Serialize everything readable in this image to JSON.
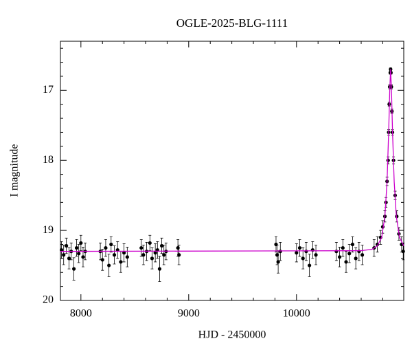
{
  "chart_data": {
    "type": "scatter",
    "title": "OGLE-2025-BLG-1111",
    "x_label": "HJD - 2450000",
    "y_label": "I magnitude",
    "xlim": [
      7810,
      10995
    ],
    "ylim": [
      20,
      16.3
    ],
    "xticks": [
      8000,
      9000,
      10000
    ],
    "yticks": [
      17,
      18,
      19,
      20
    ],
    "minor_xticks": [
      8200,
      8400,
      8600,
      8800,
      9200,
      9400,
      9600,
      9800,
      10200,
      10400,
      10600,
      10800
    ],
    "minor_yticks": [
      16.4,
      16.6,
      16.8,
      17.2,
      17.4,
      17.6,
      17.8,
      18.2,
      18.4,
      18.6,
      18.8,
      19.2,
      19.4,
      19.6,
      19.8
    ],
    "series": [
      {
        "mode": "markers",
        "color": "#000000",
        "x": [
          7820,
          7840,
          7865,
          7890,
          7910,
          7935,
          7960,
          7980,
          8000,
          8020,
          8040,
          8180,
          8200,
          8230,
          8260,
          8280,
          8310,
          8340,
          8370,
          8400,
          8430,
          8560,
          8580,
          8610,
          8640,
          8660,
          8690,
          8710,
          8730,
          8750,
          8770,
          8790,
          8900,
          8910,
          9810,
          9820,
          9830,
          9850,
          10000,
          10030,
          10060,
          10090,
          10120,
          10150,
          10180,
          10370,
          10400,
          10430,
          10460,
          10490,
          10520,
          10550,
          10580,
          10610,
          10720,
          10750,
          10780,
          10800,
          10820,
          10830,
          10840,
          10850,
          10855,
          10860,
          10865,
          10870,
          10873,
          10876,
          10880,
          10885,
          10890,
          10900,
          10915,
          10930,
          10950,
          10975,
          10990
        ],
        "values": [
          19.28,
          19.35,
          19.22,
          19.4,
          19.3,
          19.55,
          19.25,
          19.33,
          19.18,
          19.38,
          19.3,
          19.3,
          19.42,
          19.25,
          19.5,
          19.2,
          19.35,
          19.28,
          19.45,
          19.32,
          19.38,
          19.25,
          19.35,
          19.3,
          19.18,
          19.4,
          19.32,
          19.28,
          19.55,
          19.22,
          19.35,
          19.3,
          19.25,
          19.35,
          19.2,
          19.35,
          19.45,
          19.3,
          19.32,
          19.25,
          19.4,
          19.3,
          19.5,
          19.28,
          19.35,
          19.3,
          19.38,
          19.25,
          19.45,
          19.33,
          19.2,
          19.4,
          19.3,
          19.35,
          19.25,
          19.2,
          19.1,
          18.95,
          18.8,
          18.6,
          18.3,
          18.0,
          17.6,
          17.2,
          16.95,
          16.75,
          16.7,
          16.75,
          16.95,
          17.3,
          17.6,
          18.0,
          18.5,
          18.8,
          19.05,
          19.2,
          19.3
        ],
        "errors": [
          0.12,
          0.14,
          0.11,
          0.15,
          0.12,
          0.16,
          0.12,
          0.13,
          0.11,
          0.14,
          0.12,
          0.12,
          0.15,
          0.12,
          0.16,
          0.11,
          0.13,
          0.12,
          0.15,
          0.13,
          0.14,
          0.12,
          0.14,
          0.13,
          0.11,
          0.15,
          0.13,
          0.12,
          0.18,
          0.11,
          0.14,
          0.12,
          0.12,
          0.14,
          0.11,
          0.14,
          0.16,
          0.13,
          0.13,
          0.12,
          0.15,
          0.13,
          0.16,
          0.12,
          0.14,
          0.13,
          0.14,
          0.12,
          0.15,
          0.13,
          0.11,
          0.15,
          0.13,
          0.14,
          0.12,
          0.11,
          0.1,
          0.09,
          0.08,
          0.07,
          0.06,
          0.05,
          0.04,
          0.03,
          0.03,
          0.02,
          0.02,
          0.02,
          0.03,
          0.03,
          0.04,
          0.05,
          0.06,
          0.08,
          0.09,
          0.11,
          0.12
        ]
      },
      {
        "mode": "line",
        "color": "#cc00cc",
        "x": [
          7810,
          10600,
          10700,
          10750,
          10790,
          10820,
          10840,
          10855,
          10865,
          10873,
          10881,
          10891,
          10906,
          10926,
          10956,
          10995
        ],
        "values": [
          19.3,
          19.29,
          19.27,
          19.22,
          19.1,
          18.8,
          18.3,
          17.6,
          17.0,
          16.7,
          17.0,
          17.6,
          18.3,
          18.8,
          19.1,
          19.22
        ]
      }
    ]
  }
}
